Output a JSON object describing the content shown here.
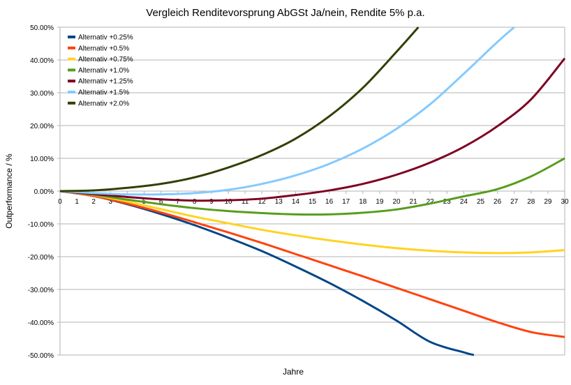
{
  "chart_data": {
    "type": "line",
    "title": "Vergleich Renditevorsprung AbGSt Ja/nein, Rendite 5% p.a.",
    "xlabel": "Jahre",
    "ylabel": "Outperformance / %",
    "xlim": [
      0,
      30
    ],
    "ylim": [
      -50,
      50
    ],
    "x_ticks": [
      "0",
      "1",
      "2",
      "3",
      "4",
      "5",
      "6",
      "7",
      "8",
      "9",
      "10",
      "11",
      "12",
      "13",
      "14",
      "15",
      "16",
      "17",
      "18",
      "19",
      "20",
      "21",
      "22",
      "23",
      "24",
      "25",
      "26",
      "27",
      "28",
      "29",
      "30"
    ],
    "y_ticks": [
      "50.00%",
      "40.00%",
      "30.00%",
      "20.00%",
      "10.00%",
      "0.00%",
      "-10.00%",
      "-20.00%",
      "-30.00%",
      "-40.00%",
      "-50.00%"
    ],
    "y_tick_values": [
      50,
      40,
      30,
      20,
      10,
      0,
      -10,
      -20,
      -30,
      -40,
      -50
    ],
    "grid": true,
    "legend_position": "top-left",
    "series": [
      {
        "name": "Alternativ +0.25%",
        "color": "#004586",
        "x": [
          0,
          2,
          4,
          6,
          8,
          10,
          12,
          14,
          16,
          18,
          20,
          22,
          24,
          24.6
        ],
        "y": [
          0,
          -1.5,
          -4.0,
          -7.0,
          -10.4,
          -14.2,
          -18.3,
          -23.0,
          -28.0,
          -33.5,
          -39.5,
          -46.0,
          -49.2,
          -50
        ]
      },
      {
        "name": "Alternativ +0.5%",
        "color": "#ff420e",
        "x": [
          0,
          2,
          4,
          6,
          8,
          10,
          12,
          14,
          16,
          18,
          20,
          22,
          24,
          26,
          28,
          30
        ],
        "y": [
          0,
          -1.5,
          -3.8,
          -6.5,
          -9.5,
          -12.6,
          -15.8,
          -19.2,
          -22.6,
          -26.0,
          -29.5,
          -33.0,
          -36.5,
          -40.0,
          -43.0,
          -44.5
        ]
      },
      {
        "name": "Alternativ +0.75%",
        "color": "#ffd320",
        "x": [
          0,
          2,
          4,
          6,
          8,
          10,
          12,
          14,
          16,
          18,
          20,
          22,
          24,
          26,
          28,
          30
        ],
        "y": [
          0,
          -1.2,
          -3.2,
          -5.5,
          -7.8,
          -9.8,
          -11.8,
          -13.5,
          -15.0,
          -16.3,
          -17.4,
          -18.2,
          -18.7,
          -18.9,
          -18.7,
          -18.0
        ]
      },
      {
        "name": "Alternativ +1.0%",
        "color": "#579d1c",
        "x": [
          0,
          2,
          4,
          6,
          8,
          10,
          12,
          14,
          16,
          18,
          20,
          22,
          24,
          26,
          28,
          30
        ],
        "y": [
          0,
          -1.1,
          -2.6,
          -4.0,
          -5.2,
          -6.1,
          -6.7,
          -7.1,
          -7.1,
          -6.6,
          -5.6,
          -3.8,
          -1.6,
          0.6,
          4.5,
          10.0
        ]
      },
      {
        "name": "Alternativ +1.25%",
        "color": "#7e0021",
        "x": [
          0,
          2,
          4,
          6,
          8,
          10,
          12,
          14,
          16,
          18,
          20,
          22,
          24,
          26,
          28,
          30
        ],
        "y": [
          0,
          -0.9,
          -1.8,
          -2.5,
          -2.9,
          -2.8,
          -2.3,
          -1.2,
          0.2,
          2.2,
          5.0,
          8.7,
          13.5,
          19.8,
          28.0,
          40.5
        ]
      },
      {
        "name": "Alternativ +1.5%",
        "color": "#83caff",
        "x": [
          0,
          2,
          4,
          6,
          8,
          10,
          12,
          14,
          16,
          18,
          20,
          22,
          24,
          26,
          27
        ],
        "y": [
          0,
          -0.6,
          -1.0,
          -1.0,
          -0.6,
          0.4,
          2.2,
          4.8,
          8.3,
          13.0,
          19.0,
          26.5,
          35.8,
          45.5,
          50
        ]
      },
      {
        "name": "Alternativ +2.0%",
        "color": "#314004",
        "x": [
          0,
          2,
          4,
          6,
          8,
          10,
          12,
          14,
          16,
          18,
          20,
          21.3
        ],
        "y": [
          0,
          0.2,
          1.0,
          2.2,
          4.2,
          7.2,
          11.0,
          16.0,
          22.8,
          31.5,
          42.5,
          50
        ]
      }
    ]
  }
}
